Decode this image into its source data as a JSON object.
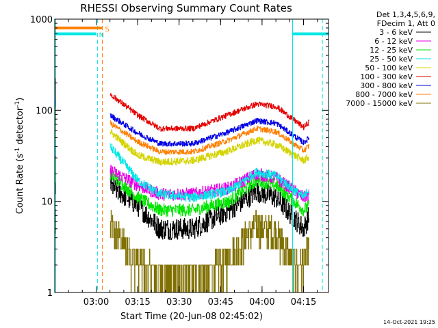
{
  "chart_data": {
    "type": "line",
    "title": "RHESSI Observing Summary Count Rates",
    "xlabel": "Start Time (20-Jun-08 02:45:02)",
    "ylabel_main": "Count Rate (s",
    "ylabel_sup1": "-1",
    "ylabel_mid": " detector",
    "ylabel_sup2": "-1",
    "ylabel_end": ")",
    "x_units": "minutes since 02:45:02",
    "xlim": [
      0,
      99
    ],
    "ylim": [
      1,
      1000
    ],
    "yscale": "log",
    "x_ticks": [
      {
        "value": 14.97,
        "label": "03:00"
      },
      {
        "value": 29.97,
        "label": "03:15"
      },
      {
        "value": 44.97,
        "label": "03:30"
      },
      {
        "value": 59.97,
        "label": "03:45"
      },
      {
        "value": 74.97,
        "label": "04:00"
      },
      {
        "value": 89.97,
        "label": "04:15"
      }
    ],
    "y_ticks": [
      {
        "value": 1,
        "label": "1"
      },
      {
        "value": 10,
        "label": "10"
      },
      {
        "value": 100,
        "label": "100"
      },
      {
        "value": 1000,
        "label": "1000"
      }
    ],
    "legend_header": [
      "Det 1,3,4,5,6,9,",
      "FDecim 1, Att 0"
    ],
    "legend_position": "right",
    "series": [
      {
        "name": "3 - 6 keV",
        "color": "#000000",
        "noise": 0.12,
        "baseline": [
          [
            20,
            15
          ],
          [
            30,
            9
          ],
          [
            38,
            5
          ],
          [
            50,
            5
          ],
          [
            63,
            8
          ],
          [
            73,
            13
          ],
          [
            80,
            11
          ],
          [
            90,
            5
          ],
          [
            92,
            7
          ]
        ]
      },
      {
        "name": "6 - 12 keV",
        "color": "#e600e6",
        "noise": 0.07,
        "baseline": [
          [
            20,
            22
          ],
          [
            30,
            15
          ],
          [
            38,
            12
          ],
          [
            50,
            12
          ],
          [
            63,
            14
          ],
          [
            73,
            20
          ],
          [
            80,
            18
          ],
          [
            90,
            11
          ],
          [
            92,
            12
          ]
        ]
      },
      {
        "name": "12 - 25 keV",
        "color": "#00e600",
        "noise": 0.07,
        "baseline": [
          [
            20,
            20
          ],
          [
            30,
            11
          ],
          [
            38,
            8
          ],
          [
            50,
            8
          ],
          [
            63,
            10
          ],
          [
            73,
            17
          ],
          [
            80,
            15
          ],
          [
            90,
            8
          ],
          [
            92,
            9
          ]
        ]
      },
      {
        "name": "25 - 50 keV",
        "color": "#00e6e6",
        "noise": 0.05,
        "baseline": [
          [
            20,
            40
          ],
          [
            30,
            17
          ],
          [
            38,
            12
          ],
          [
            50,
            11
          ],
          [
            63,
            13
          ],
          [
            73,
            21
          ],
          [
            80,
            19
          ],
          [
            90,
            11
          ],
          [
            92,
            14
          ]
        ]
      },
      {
        "name": "50 - 100 keV",
        "color": "#d4d400",
        "noise": 0.04,
        "baseline": [
          [
            20,
            58
          ],
          [
            30,
            32
          ],
          [
            38,
            27
          ],
          [
            50,
            28
          ],
          [
            63,
            36
          ],
          [
            73,
            47
          ],
          [
            80,
            42
          ],
          [
            90,
            28
          ],
          [
            92,
            31
          ]
        ]
      },
      {
        "name": "100 - 300 keV",
        "color": "#e60000",
        "noise": 0.03,
        "baseline": [
          [
            20,
            150
          ],
          [
            30,
            88
          ],
          [
            38,
            63
          ],
          [
            50,
            63
          ],
          [
            63,
            90
          ],
          [
            73,
            117
          ],
          [
            80,
            110
          ],
          [
            90,
            65
          ],
          [
            92,
            75
          ]
        ]
      },
      {
        "name": "300 - 800 keV",
        "color": "#0000e6",
        "noise": 0.03,
        "baseline": [
          [
            20,
            88
          ],
          [
            30,
            56
          ],
          [
            38,
            43
          ],
          [
            50,
            43
          ],
          [
            63,
            58
          ],
          [
            73,
            77
          ],
          [
            80,
            72
          ],
          [
            90,
            44
          ],
          [
            92,
            50
          ]
        ]
      },
      {
        "name": "800 - 7000 keV",
        "color": "#ff7f00",
        "noise": 0.03,
        "baseline": [
          [
            20,
            72
          ],
          [
            30,
            45
          ],
          [
            38,
            35
          ],
          [
            50,
            35
          ],
          [
            63,
            47
          ],
          [
            73,
            63
          ],
          [
            80,
            58
          ],
          [
            90,
            36
          ],
          [
            92,
            41
          ]
        ]
      },
      {
        "name": "7000 - 15000 keV",
        "color": "#807000",
        "noise": 0.3,
        "baseline": [
          [
            20,
            5.5
          ],
          [
            28,
            2.5
          ],
          [
            36,
            1.6
          ],
          [
            55,
            1.5
          ],
          [
            63,
            2.5
          ],
          [
            73,
            5.5
          ],
          [
            80,
            4.5
          ],
          [
            88,
            1.8
          ],
          [
            92,
            3
          ]
        ]
      }
    ],
    "flag_bars": [
      {
        "label": "S",
        "color": "#ff7f00",
        "x_start": 0,
        "x_end": 17.2,
        "y": 800
      },
      {
        "label": "N",
        "color": "#00e6e6",
        "x_start": 0,
        "x_end": 15.0,
        "y": 690
      },
      {
        "label": "",
        "color": "#00e6e6",
        "x_start": 86.0,
        "x_end": 99,
        "y": 690
      }
    ],
    "vertical_lines": [
      {
        "x": 15.5,
        "color": "#00e6e6",
        "style": "dashed"
      },
      {
        "x": 17.2,
        "color": "#ff7f00",
        "style": "dashed"
      },
      {
        "x": 86.0,
        "color": "#00e6e6",
        "style": "solid"
      },
      {
        "x": 96.8,
        "color": "#00e6e6",
        "style": "dashed"
      },
      {
        "x": 0.3,
        "color": "#00e6e6",
        "style": "solid"
      }
    ],
    "footer_timestamp": "14-Oct-2021 19:25"
  }
}
